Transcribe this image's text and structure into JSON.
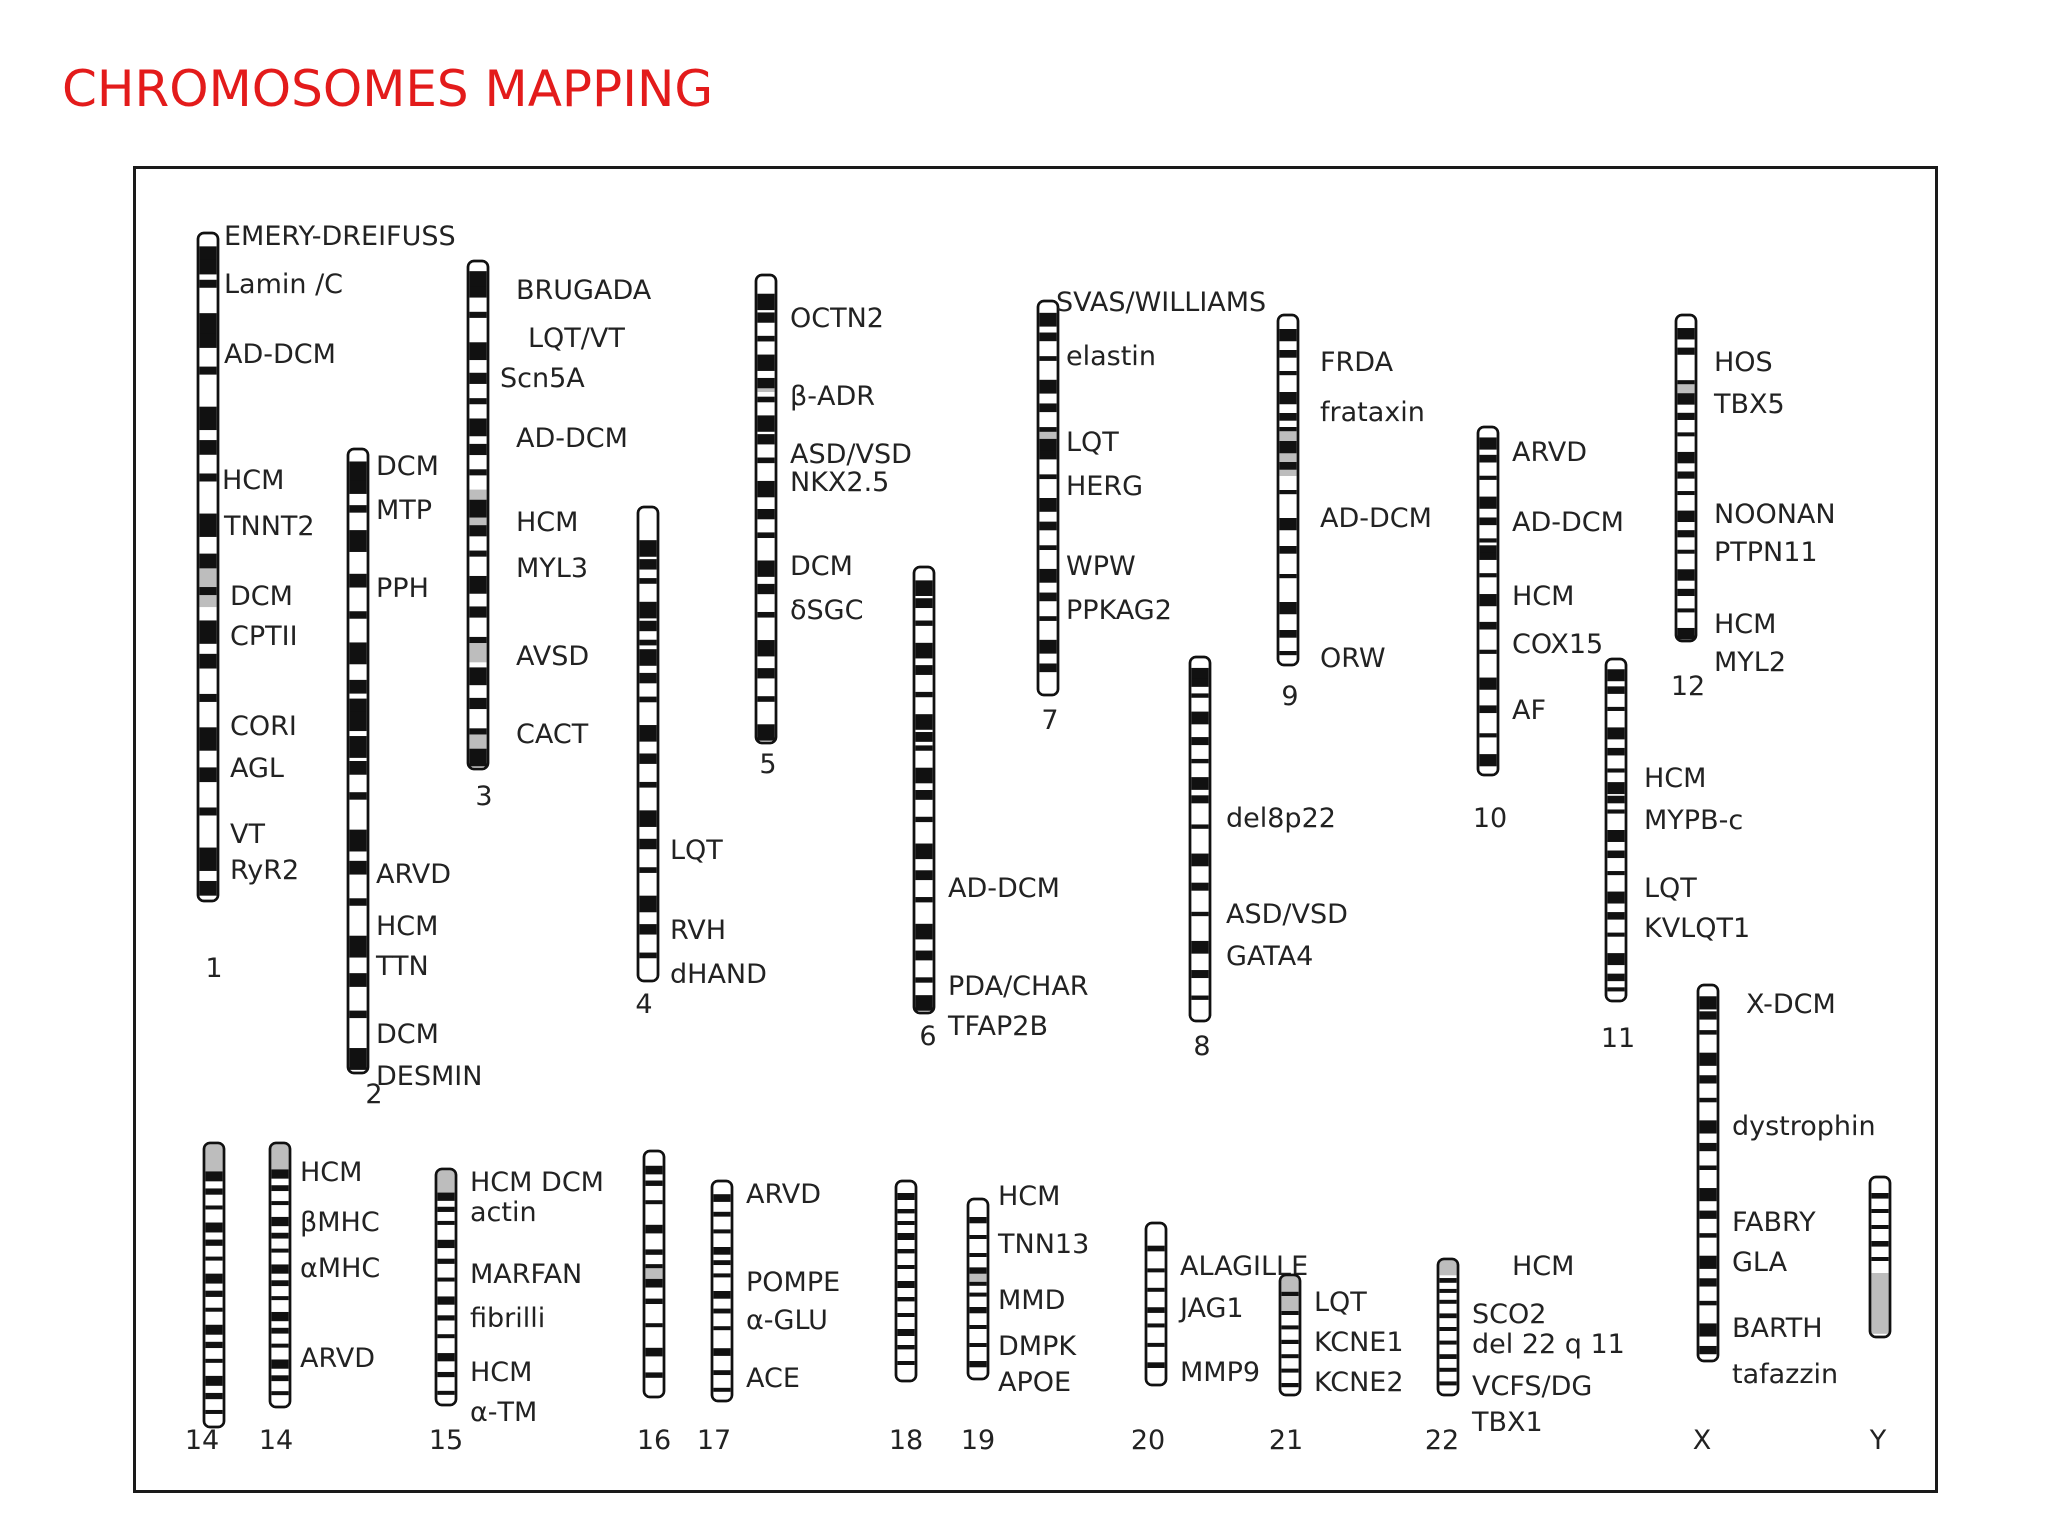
{
  "title": "CHROMOSOMES MAPPING",
  "colors": {
    "title": "#e31b1b",
    "band": "#111111",
    "gray": "#bdbdbd",
    "outline": "#111111"
  },
  "chromosomes": [
    {
      "id": "1",
      "number": "1",
      "bands": [
        0.02,
        0.04,
        0.07,
        0.12,
        0.15,
        0.2,
        0.26,
        0.31,
        0.36,
        0.42,
        0.48,
        0.53,
        0.58,
        0.63,
        0.69,
        0.74,
        0.8,
        0.86,
        0.92,
        0.97
      ],
      "gray": [
        [
          0.48,
          0.56
        ]
      ],
      "labels": [
        "EMERY-DREIFUSS",
        "Lamin /C",
        "AD-DCM",
        "HCM",
        "TNNT2",
        "DCM",
        "CPTII",
        "CORI",
        "AGL",
        "VT",
        "RyR2"
      ]
    },
    {
      "id": "2",
      "number": "2",
      "bands": [
        0.02,
        0.05,
        0.09,
        0.13,
        0.2,
        0.26,
        0.31,
        0.37,
        0.41,
        0.4,
        0.42,
        0.44,
        0.46,
        0.5,
        0.55,
        0.61,
        0.66,
        0.72,
        0.78,
        0.84,
        0.9,
        0.96
      ],
      "gray": [],
      "labels": [
        "DCM",
        "MTP",
        "PPH",
        "ARVD",
        "HCM",
        "TTN",
        "DCM",
        "DESMIN"
      ]
    },
    {
      "id": "3",
      "number": "3",
      "bands": [
        0.02,
        0.05,
        0.1,
        0.16,
        0.22,
        0.27,
        0.31,
        0.36,
        0.41,
        0.47,
        0.52,
        0.57,
        0.62,
        0.68,
        0.74,
        0.8,
        0.86,
        0.92,
        0.96
      ],
      "gray": [
        [
          0.45,
          0.52
        ],
        [
          0.75,
          0.79
        ],
        [
          0.92,
          0.96
        ]
      ],
      "labels": [
        "BRUGADA",
        "LQT/VT",
        "Scn5A",
        "AD-DCM",
        "HCM",
        "MYL3",
        "AVSD",
        "CACT"
      ]
    },
    {
      "id": "4",
      "number": "4",
      "bands": [
        0.07,
        0.11,
        0.15,
        0.2,
        0.24,
        0.28,
        0.3,
        0.35,
        0.4,
        0.46,
        0.52,
        0.58,
        0.64,
        0.7,
        0.76,
        0.82,
        0.88,
        0.94
      ],
      "gray": [],
      "labels": [
        "LQT",
        "RVH",
        "dHAND"
      ]
    },
    {
      "id": "5",
      "number": "5",
      "bands": [
        0.04,
        0.08,
        0.13,
        0.17,
        0.22,
        0.26,
        0.3,
        0.34,
        0.39,
        0.44,
        0.5,
        0.55,
        0.61,
        0.66,
        0.72,
        0.78,
        0.84,
        0.9,
        0.96
      ],
      "gray": [
        [
          0.22,
          0.25
        ]
      ],
      "labels": [
        "OCTN2",
        "β-ADR",
        "ASD/VSD",
        "NKX2.5",
        "DCM",
        "δSGC"
      ]
    },
    {
      "id": "6",
      "number": "6",
      "bands": [
        0.03,
        0.07,
        0.12,
        0.17,
        0.22,
        0.28,
        0.33,
        0.37,
        0.4,
        0.45,
        0.5,
        0.56,
        0.62,
        0.68,
        0.74,
        0.8,
        0.86,
        0.92,
        0.96
      ],
      "gray": [],
      "labels": [
        "AD-DCM",
        "PDA/CHAR",
        "TFAP2B"
      ]
    },
    {
      "id": "7",
      "number": "7",
      "bands": [
        0.03,
        0.08,
        0.14,
        0.2,
        0.26,
        0.32,
        0.35,
        0.38,
        0.44,
        0.5,
        0.56,
        0.62,
        0.68,
        0.74,
        0.8,
        0.86,
        0.92
      ],
      "gray": [
        [
          0.33,
          0.37
        ]
      ],
      "labels": [
        "SVAS/WILLIAMS",
        "elastin",
        "LQT",
        "HERG",
        "WPW",
        "PPKAG2"
      ]
    },
    {
      "id": "8",
      "number": "8",
      "bands": [
        0.03,
        0.06,
        0.1,
        0.15,
        0.22,
        0.28,
        0.33,
        0.38,
        0.46,
        0.54,
        0.62,
        0.7,
        0.78,
        0.86,
        0.93
      ],
      "gray": [],
      "labels": [
        "del8p22",
        "ASD/VSD",
        "GATA4"
      ]
    },
    {
      "id": "9",
      "number": "9",
      "bands": [
        0.04,
        0.1,
        0.16,
        0.22,
        0.28,
        0.32,
        0.36,
        0.42,
        0.5,
        0.58,
        0.66,
        0.74,
        0.82,
        0.9,
        0.96
      ],
      "gray": [
        [
          0.32,
          0.46
        ]
      ],
      "labels": [
        "FRDA",
        "frataxin",
        "AD-DCM",
        "ORW"
      ]
    },
    {
      "id": "10",
      "number": "10",
      "bands": [
        0.03,
        0.08,
        0.14,
        0.2,
        0.26,
        0.32,
        0.34,
        0.36,
        0.42,
        0.48,
        0.56,
        0.64,
        0.72,
        0.8,
        0.88,
        0.94
      ],
      "gray": [],
      "labels": [
        "ARVD",
        "AD-DCM",
        "HCM",
        "COX15",
        "AF"
      ]
    },
    {
      "id": "11",
      "number": "11",
      "bands": [
        0.03,
        0.08,
        0.14,
        0.2,
        0.26,
        0.32,
        0.36,
        0.4,
        0.44,
        0.5,
        0.56,
        0.62,
        0.68,
        0.74,
        0.8,
        0.86,
        0.92,
        0.96
      ],
      "gray": [
        [
          0.4,
          0.42
        ]
      ],
      "labels": [
        "HCM",
        "MYPB-c",
        "LQT",
        "KVLQT1"
      ]
    },
    {
      "id": "12",
      "number": "12",
      "bands": [
        0.04,
        0.1,
        0.2,
        0.24,
        0.3,
        0.36,
        0.42,
        0.48,
        0.54,
        0.6,
        0.66,
        0.72,
        0.78,
        0.84,
        0.9,
        0.96
      ],
      "gray": [
        [
          0.2,
          0.27
        ]
      ],
      "labels": [
        "HOS",
        "TBX5",
        "NOONAN",
        "PTPN11",
        "HCM",
        "MYL2"
      ]
    },
    {
      "id": "X",
      "number": "X",
      "bands": [
        0.03,
        0.07,
        0.12,
        0.18,
        0.24,
        0.3,
        0.36,
        0.42,
        0.48,
        0.54,
        0.6,
        0.66,
        0.72,
        0.78,
        0.84,
        0.9,
        0.96
      ],
      "gray": [],
      "labels": [
        "X-DCM",
        "dystrophin",
        "FABRY",
        "GLA",
        "BARTH",
        "tafazzin"
      ]
    },
    {
      "id": "14a",
      "number": "14",
      "bands": [
        0.1,
        0.16,
        0.22,
        0.28,
        0.34,
        0.4,
        0.46,
        0.52,
        0.58,
        0.64,
        0.7,
        0.76,
        0.82,
        0.88,
        0.94
      ],
      "gray": [
        [
          0,
          0.1
        ]
      ],
      "labels": []
    },
    {
      "id": "14b",
      "number": "14",
      "bands": [
        0.1,
        0.16,
        0.22,
        0.28,
        0.34,
        0.4,
        0.46,
        0.52,
        0.58,
        0.64,
        0.7,
        0.76,
        0.82,
        0.88,
        0.94
      ],
      "gray": [
        [
          0,
          0.1
        ]
      ],
      "labels": [
        "HCM",
        "βMHC",
        "αMHC",
        "ARVD"
      ]
    },
    {
      "id": "15",
      "number": "15",
      "bands": [
        0.1,
        0.16,
        0.22,
        0.3,
        0.38,
        0.46,
        0.54,
        0.62,
        0.7,
        0.78,
        0.86,
        0.94
      ],
      "gray": [
        [
          0,
          0.12
        ]
      ],
      "labels": [
        "HCM DCM",
        "actin",
        "MARFAN",
        "fibrilli",
        "HCM",
        "α-TM"
      ]
    },
    {
      "id": "16",
      "number": "16",
      "bands": [
        0.06,
        0.12,
        0.2,
        0.3,
        0.4,
        0.46,
        0.52,
        0.6,
        0.7,
        0.8,
        0.9
      ],
      "gray": [
        [
          0.46,
          0.54
        ]
      ],
      "labels": []
    },
    {
      "id": "17",
      "number": "17",
      "bands": [
        0.06,
        0.14,
        0.22,
        0.3,
        0.36,
        0.42,
        0.5,
        0.58,
        0.66,
        0.76,
        0.86,
        0.94
      ],
      "gray": [],
      "labels": [
        "ARVD",
        "POMPE",
        "α-GLU",
        "ACE"
      ]
    },
    {
      "id": "18",
      "number": "18",
      "bands": [
        0.06,
        0.14,
        0.2,
        0.26,
        0.34,
        0.42,
        0.5,
        0.58,
        0.66,
        0.74,
        0.82,
        0.9
      ],
      "gray": [],
      "labels": []
    },
    {
      "id": "19",
      "number": "19",
      "bands": [
        0.1,
        0.2,
        0.3,
        0.38,
        0.46,
        0.52,
        0.6,
        0.7,
        0.8,
        0.9
      ],
      "gray": [
        [
          0.38,
          0.46
        ]
      ],
      "labels": [
        "HCM",
        "TNN13",
        "MMD",
        "DMPK",
        "APOE"
      ]
    },
    {
      "id": "20",
      "number": "20",
      "bands": [
        0.14,
        0.28,
        0.4,
        0.52,
        0.62,
        0.74,
        0.86
      ],
      "gray": [],
      "labels": [
        "ALAGILLE",
        "JAG1",
        "MMP9"
      ]
    },
    {
      "id": "21",
      "number": "21",
      "bands": [
        0.14,
        0.3,
        0.42,
        0.54,
        0.66,
        0.78,
        0.9
      ],
      "gray": [
        [
          0,
          0.3
        ]
      ],
      "labels": [
        "LQT",
        "KCNE1",
        "KCNE2"
      ]
    },
    {
      "id": "22",
      "number": "22",
      "bands": [
        0.14,
        0.22,
        0.3,
        0.4,
        0.5,
        0.6,
        0.7,
        0.8,
        0.9
      ],
      "gray": [
        [
          0,
          0.12
        ]
      ],
      "labels": [
        "HCM",
        "SCO2",
        "del 22 q 11",
        "VCFS/DG",
        "TBX1"
      ]
    },
    {
      "id": "Y",
      "number": "Y",
      "bands": [
        0.1,
        0.2,
        0.3,
        0.4,
        0.5
      ],
      "gray": [
        [
          0.6,
          0.98
        ]
      ],
      "labels": []
    }
  ]
}
